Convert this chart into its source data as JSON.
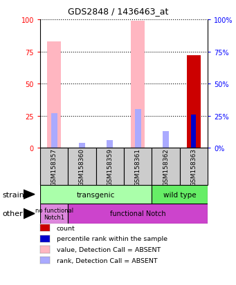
{
  "title": "GDS2848 / 1436463_at",
  "samples": [
    "GSM158357",
    "GSM158360",
    "GSM158359",
    "GSM158361",
    "GSM158362",
    "GSM158363"
  ],
  "value_absent": [
    83,
    0,
    0,
    99,
    0,
    0
  ],
  "rank_absent": [
    27,
    4,
    6,
    30,
    13,
    0
  ],
  "count": [
    0,
    0,
    0,
    0,
    0,
    72
  ],
  "percentile_rank": [
    0,
    0,
    0,
    0,
    0,
    26
  ],
  "color_count": "#cc0000",
  "color_percentile": "#0000cc",
  "color_value_absent": "#FFB6C1",
  "color_rank_absent": "#AAAAFF",
  "color_sample_bg": "#cccccc",
  "ylim": [
    0,
    100
  ],
  "yticks": [
    0,
    25,
    50,
    75,
    100
  ],
  "strain_groups": [
    {
      "label": "transgenic",
      "span": 4,
      "color": "#aaffaa"
    },
    {
      "label": "wild type",
      "span": 2,
      "color": "#66ee66"
    }
  ],
  "other_groups": [
    {
      "label": "no functional\nNotch1",
      "span": 1,
      "color": "#dd88dd"
    },
    {
      "label": "functional Notch",
      "span": 5,
      "color": "#cc44cc"
    }
  ],
  "legend_items": [
    {
      "color": "#cc0000",
      "label": "count"
    },
    {
      "color": "#0000cc",
      "label": "percentile rank within the sample"
    },
    {
      "color": "#FFB6C1",
      "label": "value, Detection Call = ABSENT"
    },
    {
      "color": "#AAAAFF",
      "label": "rank, Detection Call = ABSENT"
    }
  ]
}
